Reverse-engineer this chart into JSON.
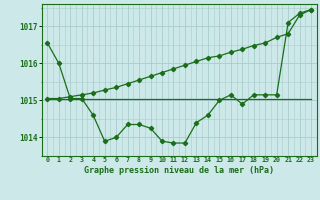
{
  "title": "Graphe pression niveau de la mer (hPa)",
  "bg_color": "#cce8e8",
  "grid_color": "#aacccc",
  "line_color": "#1a6e1a",
  "x_labels": [
    "0",
    "1",
    "2",
    "3",
    "4",
    "5",
    "6",
    "7",
    "8",
    "9",
    "10",
    "11",
    "12",
    "13",
    "14",
    "15",
    "16",
    "17",
    "18",
    "19",
    "20",
    "21",
    "22",
    "23"
  ],
  "ylim": [
    1013.5,
    1017.6
  ],
  "yticks": [
    1014,
    1015,
    1016,
    1017
  ],
  "hourly_data": [
    1016.55,
    1016.0,
    1015.05,
    1015.05,
    1014.6,
    1013.9,
    1014.0,
    1014.35,
    1014.35,
    1014.25,
    1013.9,
    1013.85,
    1013.85,
    1014.4,
    1014.6,
    1015.0,
    1015.15,
    1014.9,
    1015.15,
    1015.15,
    1015.15,
    1017.1,
    1017.35,
    1017.45
  ],
  "trend_data": [
    1015.05,
    1015.05,
    1015.1,
    1015.15,
    1015.2,
    1015.28,
    1015.35,
    1015.45,
    1015.55,
    1015.65,
    1015.75,
    1015.85,
    1015.95,
    1016.05,
    1016.15,
    1016.2,
    1016.3,
    1016.38,
    1016.48,
    1016.55,
    1016.7,
    1016.8,
    1017.3,
    1017.45
  ],
  "flat_data": [
    1015.05,
    1015.05,
    1015.05,
    1015.05,
    1015.05,
    1015.05,
    1015.05,
    1015.05,
    1015.05,
    1015.05,
    1015.05,
    1015.05,
    1015.05,
    1015.05,
    1015.05,
    1015.05,
    1015.05,
    1015.05,
    1015.05,
    1015.05,
    1015.05,
    1015.05,
    1015.05,
    1015.05
  ],
  "figsize": [
    3.2,
    2.0
  ],
  "dpi": 100
}
